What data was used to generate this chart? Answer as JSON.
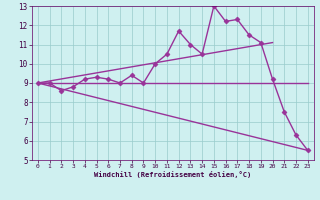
{
  "xlabel": "Windchill (Refroidissement éolien,°C)",
  "bg_color": "#cff0f0",
  "line_color": "#993399",
  "grid_color": "#99cccc",
  "xlim": [
    -0.5,
    23.5
  ],
  "ylim": [
    5,
    13
  ],
  "xticks": [
    0,
    1,
    2,
    3,
    4,
    5,
    6,
    7,
    8,
    9,
    10,
    11,
    12,
    13,
    14,
    15,
    16,
    17,
    18,
    19,
    20,
    21,
    22,
    23
  ],
  "yticks": [
    5,
    6,
    7,
    8,
    9,
    10,
    11,
    12,
    13
  ],
  "series": [
    {
      "x": [
        0,
        1,
        2,
        3,
        4,
        5,
        6,
        7,
        8,
        9,
        10,
        11,
        12,
        13,
        14,
        15,
        16,
        17,
        18,
        19,
        20,
        21,
        22,
        23
      ],
      "y": [
        9.0,
        9.0,
        8.6,
        8.8,
        9.2,
        9.3,
        9.2,
        9.0,
        9.4,
        9.0,
        10.0,
        10.5,
        11.7,
        11.0,
        10.5,
        13.0,
        12.2,
        12.3,
        11.5,
        11.1,
        9.2,
        7.5,
        6.3,
        5.5
      ],
      "marker": "D",
      "markersize": 2.5,
      "linewidth": 1.0,
      "has_marker": true
    },
    {
      "x": [
        0,
        20
      ],
      "y": [
        9.0,
        11.1
      ],
      "marker": null,
      "markersize": 0,
      "linewidth": 1.0,
      "has_marker": false
    },
    {
      "x": [
        0,
        23
      ],
      "y": [
        9.0,
        9.0
      ],
      "marker": null,
      "markersize": 0,
      "linewidth": 1.0,
      "has_marker": false
    },
    {
      "x": [
        0,
        23
      ],
      "y": [
        9.0,
        5.5
      ],
      "marker": null,
      "markersize": 0,
      "linewidth": 1.0,
      "has_marker": false
    }
  ]
}
